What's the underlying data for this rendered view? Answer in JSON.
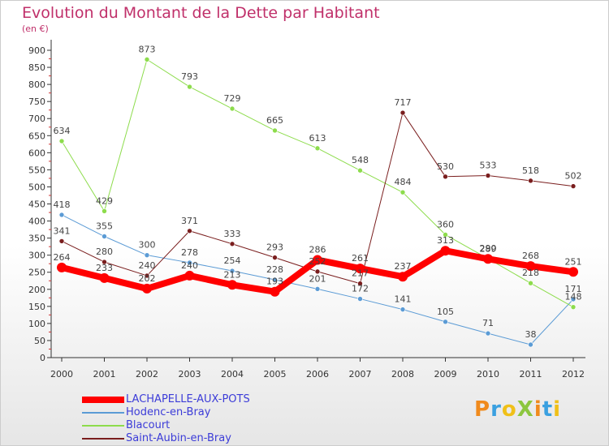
{
  "title": "Evolution du Montant de la Dette par Habitant",
  "unit": "(en €)",
  "logo_text": "ProXiti",
  "chart_data": {
    "type": "line",
    "title": "Evolution du Montant de la Dette par Habitant",
    "subtitle": "(en €)",
    "x": [
      "2000",
      "2001",
      "2002",
      "2003",
      "2004",
      "2005",
      "2006",
      "2007",
      "2008",
      "2009",
      "2010",
      "2011",
      "2012"
    ],
    "ylim": [
      0,
      900
    ],
    "yticks": [
      0,
      50,
      100,
      150,
      200,
      250,
      300,
      350,
      400,
      450,
      500,
      550,
      600,
      650,
      700,
      750,
      800,
      850,
      900
    ],
    "grid": false,
    "legend_position": "bottom-left",
    "series": [
      {
        "name": "LACHAPELLE-AUX-POTS",
        "color": "#ff0000",
        "emphasis": true,
        "values": [
          264,
          233,
          202,
          240,
          213,
          193,
          286,
          261,
          237,
          313,
          289,
          268,
          251
        ]
      },
      {
        "name": "Hodenc-en-Bray",
        "color": "#5b9bd5",
        "emphasis": false,
        "values": [
          418,
          355,
          300,
          278,
          254,
          228,
          201,
          172,
          141,
          105,
          71,
          38,
          171
        ]
      },
      {
        "name": "Blacourt",
        "color": "#8ddc4c",
        "emphasis": false,
        "values": [
          634,
          429,
          873,
          793,
          729,
          665,
          613,
          548,
          484,
          360,
          290,
          218,
          148
        ]
      },
      {
        "name": "Saint-Aubin-en-Bray",
        "color": "#7a1e1e",
        "emphasis": false,
        "values": [
          341,
          280,
          240,
          371,
          333,
          293,
          252,
          217,
          717,
          530,
          533,
          518,
          502
        ]
      }
    ]
  }
}
